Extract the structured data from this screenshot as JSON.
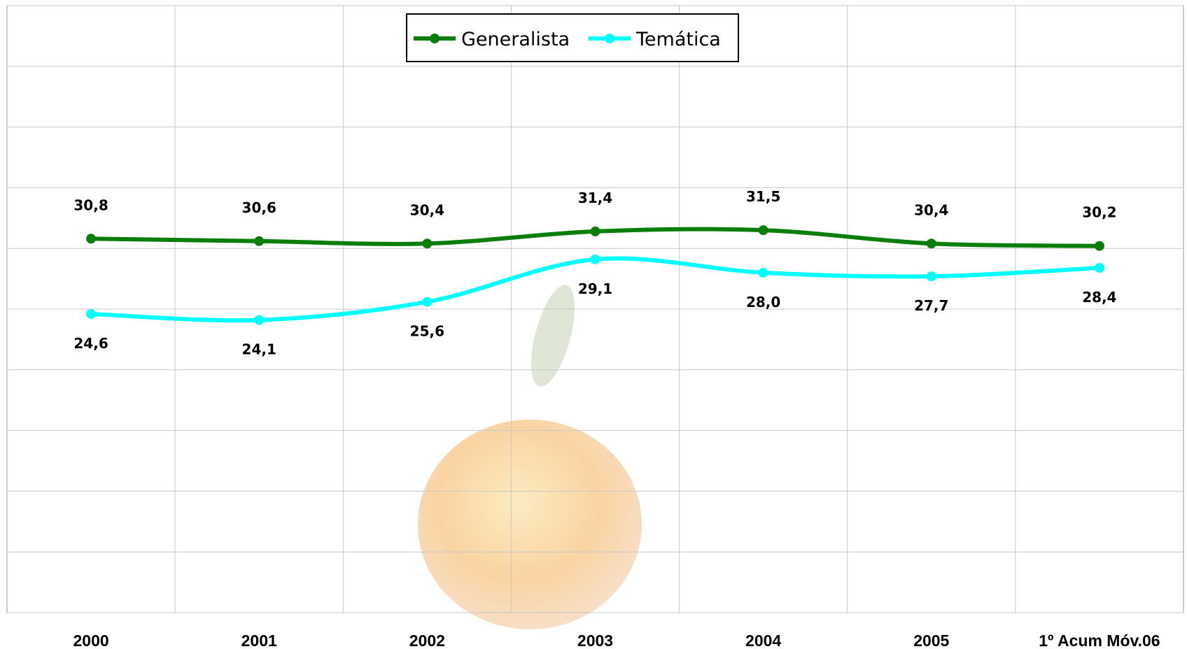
{
  "chart_data": {
    "type": "line",
    "categories": [
      "2000",
      "2001",
      "2002",
      "2003",
      "2004",
      "2005",
      "1º Acum Móv.06"
    ],
    "series": [
      {
        "name": "Generalista",
        "color": "#0a7d0a",
        "values": [
          30.8,
          30.6,
          30.4,
          31.4,
          31.5,
          30.4,
          30.2
        ],
        "value_labels": [
          "30,8",
          "30,6",
          "30,4",
          "31,4",
          "31,5",
          "30,4",
          "30,2"
        ]
      },
      {
        "name": "Temática",
        "color": "#00ffff",
        "values": [
          24.6,
          24.1,
          25.6,
          29.1,
          28.0,
          27.7,
          28.4
        ],
        "value_labels": [
          "24,6",
          "24,1",
          "25,6",
          "29,1",
          "28,0",
          "27,7",
          "28,4"
        ]
      }
    ],
    "ylim": [
      0,
      50
    ],
    "yticks": [
      0,
      5,
      10,
      15,
      20,
      25,
      30,
      35,
      40,
      45,
      50
    ],
    "grid": true,
    "legend": "top"
  }
}
